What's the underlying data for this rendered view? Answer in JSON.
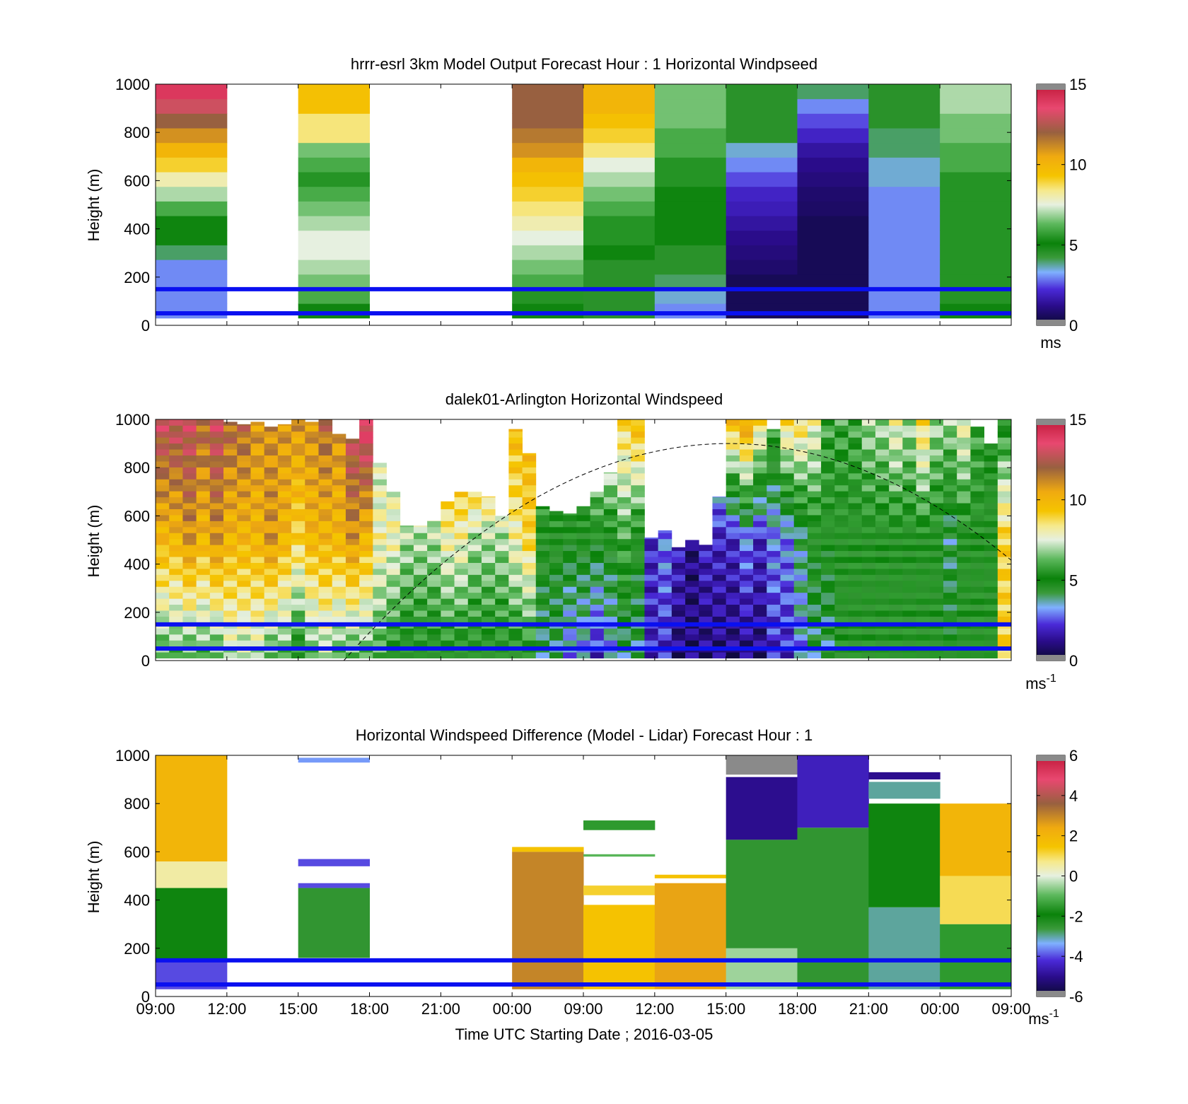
{
  "figure": {
    "xlabel": "Time UTC  Starting Date ; 2016-03-05",
    "x_tick_labels": [
      "09:00",
      "12:00",
      "15:00",
      "18:00",
      "21:00",
      "00:00",
      "09:00",
      "12:00",
      "15:00",
      "18:00",
      "21:00",
      "00:00",
      "09:00"
    ]
  },
  "chart_data": [
    {
      "type": "heatmap",
      "title": "hrrr-esrl 3km Model Output   Forecast Hour : 1 Horizontal Windpseed",
      "ylabel": "Height (m)",
      "ylim": [
        0,
        1000
      ],
      "yticks": [
        "0",
        "200",
        "400",
        "600",
        "800",
        "1000"
      ],
      "colorbar": {
        "ticks": [
          "0",
          "5",
          "10",
          "15"
        ],
        "range": [
          0,
          15
        ],
        "unit": "ms"
      },
      "reference_lines_m": [
        50,
        150
      ],
      "reference_line_color": "#0a10f0",
      "columns": [
        {
          "time": "09:00",
          "profile_ms": [
            3,
            3,
            3,
            3,
            4,
            5,
            5,
            6,
            7,
            8,
            9,
            10,
            11,
            12,
            13,
            14
          ]
        },
        {
          "time": "12:00",
          "profile_ms": []
        },
        {
          "time": "15:00",
          "profile_ms": [
            5,
            6,
            6.5,
            7,
            7.5,
            7.5,
            7,
            6.5,
            6,
            5.5,
            6,
            6.5,
            8.5,
            8.5,
            9.5,
            9.5
          ]
        },
        {
          "time": "18:00",
          "profile_ms": []
        },
        {
          "time": "21:00",
          "profile_ms": []
        },
        {
          "time": "00:00",
          "profile_ms": [
            5,
            5.5,
            6,
            6.5,
            7,
            7.5,
            8,
            8.5,
            9,
            9.5,
            10,
            11,
            11.5,
            12,
            12,
            12
          ]
        },
        {
          "time": "09:00",
          "profile_ms": [
            4.5,
            4.5,
            4.5,
            4.5,
            5,
            5.5,
            5.5,
            6,
            6.5,
            7,
            7.5,
            8.5,
            9,
            9.5,
            10,
            10
          ]
        },
        {
          "time": "12:00",
          "profile_ms": [
            3,
            3.5,
            4,
            4.5,
            4.5,
            5,
            5,
            5,
            5,
            5.5,
            5.5,
            6,
            6,
            6.5,
            6.5,
            6.5
          ]
        },
        {
          "time": "15:00",
          "profile_ms": [
            0.5,
            0.5,
            0.5,
            0.8,
            1,
            1.2,
            1.5,
            1.8,
            2,
            2.5,
            3,
            3.5,
            4.5,
            4.5,
            4.5,
            4.5
          ]
        },
        {
          "time": "18:00",
          "profile_ms": [
            0.5,
            0.5,
            0.5,
            0.5,
            0.5,
            0.5,
            0.5,
            0.7,
            0.8,
            1,
            1.2,
            1.5,
            2,
            2.5,
            3,
            4
          ]
        },
        {
          "time": "21:00",
          "profile_ms": [
            3,
            3,
            3,
            3,
            3,
            3,
            3,
            3,
            3,
            3.5,
            3.5,
            4,
            4,
            4.5,
            4.5,
            4.5
          ]
        },
        {
          "time": "00:00",
          "profile_ms": [
            5,
            5.5,
            5.5,
            5.5,
            5.5,
            5.5,
            5.5,
            5.5,
            5.5,
            5.5,
            6,
            6,
            6.5,
            6.5,
            7,
            7
          ]
        }
      ]
    },
    {
      "type": "heatmap",
      "title": "dalek01-Arlington  Horizontal Windspeed",
      "ylabel": "Height (m)",
      "ylim": [
        0,
        1000
      ],
      "yticks": [
        "0",
        "200",
        "400",
        "600",
        "800",
        "1000"
      ],
      "colorbar": {
        "ticks": [
          "0",
          "5",
          "10",
          "15"
        ],
        "range": [
          0,
          15
        ],
        "unit": "ms",
        "unit_exponent": "-1"
      },
      "reference_lines_m": [
        50,
        150
      ],
      "reference_line_color": "#0a10f0",
      "overlay_curve": {
        "style": "dashed",
        "peak_m": 900,
        "peak_time": "15:00"
      },
      "columns": [
        {
          "time": "09:00",
          "top_m": 1000,
          "low_ms": 6,
          "mid_ms": 10,
          "high_ms": 13
        },
        {
          "time": "09:30",
          "top_m": 1000,
          "low_ms": 6,
          "mid_ms": 10,
          "high_ms": 13
        },
        {
          "time": "10:00",
          "top_m": 1000,
          "low_ms": 6,
          "mid_ms": 11,
          "high_ms": 13
        },
        {
          "time": "10:30",
          "top_m": 1000,
          "low_ms": 6,
          "mid_ms": 10,
          "high_ms": 12
        },
        {
          "time": "11:00",
          "top_m": 1000,
          "low_ms": 6,
          "mid_ms": 11,
          "high_ms": 13
        },
        {
          "time": "11:30",
          "top_m": 990,
          "low_ms": 7,
          "mid_ms": 10,
          "high_ms": 12
        },
        {
          "time": "12:00",
          "top_m": 980,
          "low_ms": 7,
          "mid_ms": 10,
          "high_ms": 12
        },
        {
          "time": "12:30",
          "top_m": 990,
          "low_ms": 7,
          "mid_ms": 10,
          "high_ms": 11
        },
        {
          "time": "13:00",
          "top_m": 970,
          "low_ms": 6,
          "mid_ms": 11,
          "high_ms": 11
        },
        {
          "time": "13:30",
          "top_m": 980,
          "low_ms": 6,
          "mid_ms": 10,
          "high_ms": 11
        },
        {
          "time": "14:00",
          "top_m": 1000,
          "low_ms": 5,
          "mid_ms": 9,
          "high_ms": 11
        },
        {
          "time": "14:30",
          "top_m": 990,
          "low_ms": 6,
          "mid_ms": 10,
          "high_ms": 11
        },
        {
          "time": "15:00",
          "top_m": 1000,
          "low_ms": 7,
          "mid_ms": 10,
          "high_ms": 12
        },
        {
          "time": "15:30",
          "top_m": 940,
          "low_ms": 6,
          "mid_ms": 10,
          "high_ms": 11
        },
        {
          "time": "16:00",
          "top_m": 920,
          "low_ms": 6,
          "mid_ms": 11,
          "high_ms": 13
        },
        {
          "time": "16:30",
          "top_m": 1000,
          "low_ms": 6,
          "mid_ms": 10,
          "high_ms": 14
        },
        {
          "time": "17:00",
          "top_m": 820,
          "low_ms": 6,
          "mid_ms": 8,
          "high_ms": 7
        },
        {
          "time": "17:30",
          "top_m": 700,
          "low_ms": 5,
          "mid_ms": 8,
          "high_ms": 7
        },
        {
          "time": "18:00",
          "top_m": 560,
          "low_ms": 5,
          "mid_ms": 7,
          "high_ms": 9
        },
        {
          "time": "18:30",
          "top_m": 560,
          "low_ms": 5,
          "mid_ms": 7,
          "high_ms": 9
        },
        {
          "time": "19:00",
          "top_m": 580,
          "low_ms": 5,
          "mid_ms": 7,
          "high_ms": 10
        },
        {
          "time": "19:30",
          "top_m": 660,
          "low_ms": 5,
          "mid_ms": 8,
          "high_ms": 11
        },
        {
          "time": "20:00",
          "top_m": 700,
          "low_ms": 5,
          "mid_ms": 8,
          "high_ms": 11
        },
        {
          "time": "20:30",
          "top_m": 700,
          "low_ms": 5,
          "mid_ms": 7,
          "high_ms": 12
        },
        {
          "time": "21:00",
          "top_m": 680,
          "low_ms": 5,
          "mid_ms": 7,
          "high_ms": 12
        },
        {
          "time": "21:30",
          "top_m": 600,
          "low_ms": 5,
          "mid_ms": 7,
          "high_ms": 10
        },
        {
          "time": "22:00",
          "top_m": 960,
          "low_ms": 5,
          "mid_ms": 8,
          "high_ms": 10
        },
        {
          "time": "22:30",
          "top_m": 860,
          "low_ms": 5,
          "mid_ms": 9,
          "high_ms": 10
        },
        {
          "time": "23:00",
          "top_m": 640,
          "low_ms": 4,
          "mid_ms": 5,
          "high_ms": 7
        },
        {
          "time": "23:30",
          "top_m": 620,
          "low_ms": 4,
          "mid_ms": 5,
          "high_ms": 7
        },
        {
          "time": "00:00",
          "top_m": 610,
          "low_ms": 3,
          "mid_ms": 5,
          "high_ms": 6
        },
        {
          "time": "00:30",
          "top_m": 640,
          "low_ms": 3,
          "mid_ms": 5,
          "high_ms": 6
        },
        {
          "time": "01:00",
          "top_m": 700,
          "low_ms": 2,
          "mid_ms": 5,
          "high_ms": 9
        },
        {
          "time": "01:30",
          "top_m": 780,
          "low_ms": 3,
          "mid_ms": 5,
          "high_ms": 9
        },
        {
          "time": "02:00",
          "top_m": 1000,
          "low_ms": 4,
          "mid_ms": 6,
          "high_ms": 9
        },
        {
          "time": "02:30",
          "top_m": 1000,
          "low_ms": 4,
          "mid_ms": 5,
          "high_ms": 10
        },
        {
          "time": "03:00",
          "top_m": 510,
          "low_ms": 2,
          "mid_ms": 2,
          "high_ms": 3
        },
        {
          "time": "03:30",
          "top_m": 540,
          "low_ms": 2,
          "mid_ms": 3,
          "high_ms": 4
        },
        {
          "time": "04:00",
          "top_m": 470,
          "low_ms": 1,
          "mid_ms": 2,
          "high_ms": 3
        },
        {
          "time": "04:30",
          "top_m": 500,
          "low_ms": 1,
          "mid_ms": 1,
          "high_ms": 3
        },
        {
          "time": "05:00",
          "top_m": 480,
          "low_ms": 1,
          "mid_ms": 2,
          "high_ms": 4
        },
        {
          "time": "05:30",
          "top_m": 680,
          "low_ms": 1,
          "mid_ms": 2,
          "high_ms": 5
        },
        {
          "time": "06:00",
          "top_m": 1000,
          "low_ms": 1,
          "mid_ms": 2,
          "high_ms": 10
        },
        {
          "time": "06:30",
          "top_m": 1000,
          "low_ms": 1,
          "mid_ms": 3,
          "high_ms": 11
        },
        {
          "time": "07:00",
          "top_m": 1000,
          "low_ms": 1,
          "mid_ms": 2,
          "high_ms": 9
        },
        {
          "time": "07:30",
          "top_m": 960,
          "low_ms": 2,
          "mid_ms": 3,
          "high_ms": 6
        },
        {
          "time": "08:00",
          "top_m": 1000,
          "low_ms": 2,
          "mid_ms": 3,
          "high_ms": 9
        },
        {
          "time": "08:30",
          "top_m": 1000,
          "low_ms": 3,
          "mid_ms": 4,
          "high_ms": 9
        },
        {
          "time": "09:00",
          "top_m": 1000,
          "low_ms": 4,
          "mid_ms": 5,
          "high_ms": 8
        },
        {
          "time": "09:30",
          "top_m": 1000,
          "low_ms": 4,
          "mid_ms": 5,
          "high_ms": 6
        },
        {
          "time": "10:00",
          "top_m": 1000,
          "low_ms": 5,
          "mid_ms": 5,
          "high_ms": 6
        },
        {
          "time": "10:30",
          "top_m": 1000,
          "low_ms": 5,
          "mid_ms": 5,
          "high_ms": 6
        },
        {
          "time": "11:00",
          "top_m": 1000,
          "low_ms": 5,
          "mid_ms": 5,
          "high_ms": 7
        },
        {
          "time": "11:30",
          "top_m": 1000,
          "low_ms": 5,
          "mid_ms": 5,
          "high_ms": 7
        },
        {
          "time": "12:00",
          "top_m": 1000,
          "low_ms": 5,
          "mid_ms": 5,
          "high_ms": 8
        },
        {
          "time": "12:30",
          "top_m": 1000,
          "low_ms": 5,
          "mid_ms": 5,
          "high_ms": 7
        },
        {
          "time": "13:00",
          "top_m": 1000,
          "low_ms": 5,
          "mid_ms": 5,
          "high_ms": 9
        },
        {
          "time": "13:30",
          "top_m": 1000,
          "low_ms": 5,
          "mid_ms": 5,
          "high_ms": 7
        },
        {
          "time": "14:00",
          "top_m": 1000,
          "low_ms": 5,
          "mid_ms": 4,
          "high_ms": 7
        },
        {
          "time": "14:30",
          "top_m": 1000,
          "low_ms": 5,
          "mid_ms": 5,
          "high_ms": 8
        },
        {
          "time": "15:00",
          "top_m": 970,
          "low_ms": 5,
          "mid_ms": 5,
          "high_ms": 6
        },
        {
          "time": "15:30",
          "top_m": 900,
          "low_ms": 5,
          "mid_ms": 5,
          "high_ms": 5
        },
        {
          "time": "16:00",
          "top_m": 1000,
          "low_ms": 9,
          "mid_ms": 9,
          "high_ms": 5
        }
      ]
    },
    {
      "type": "heatmap",
      "title": "Horizontal Windspeed Difference (Model - Lidar) Forecast Hour : 1",
      "ylabel": "Height (m)",
      "ylim": [
        0,
        1000
      ],
      "yticks": [
        "0",
        "200",
        "400",
        "600",
        "800",
        "1000"
      ],
      "colorbar": {
        "ticks": [
          "-6",
          "-4",
          "-2",
          "0",
          "2",
          "4",
          "6"
        ],
        "range": [
          -6,
          6
        ],
        "unit": "ms",
        "unit_exponent": "-1"
      },
      "reference_lines_m": [
        50,
        150
      ],
      "reference_line_color": "#0a10f0",
      "columns": [
        {
          "time": "09:00",
          "segments": [
            {
              "from": 30,
              "to": 150,
              "diff": -4
            },
            {
              "from": 150,
              "to": 450,
              "diff": -2
            },
            {
              "from": 450,
              "to": 560,
              "diff": 0.5
            },
            {
              "from": 560,
              "to": 1000,
              "diff": 2
            }
          ]
        },
        {
          "time": "12:00",
          "segments": []
        },
        {
          "time": "15:00",
          "segments": [
            {
              "from": 160,
              "to": 450,
              "diff": -2.5
            },
            {
              "from": 450,
              "to": 470,
              "diff": -4
            },
            {
              "from": 540,
              "to": 570,
              "diff": -4
            },
            {
              "from": 970,
              "to": 990,
              "diff": -3.5
            }
          ]
        },
        {
          "time": "18:00",
          "segments": []
        },
        {
          "time": "21:00",
          "segments": []
        },
        {
          "time": "00:00",
          "segments": [
            {
              "from": 30,
              "to": 600,
              "diff": 3
            },
            {
              "from": 600,
              "to": 620,
              "diff": 1.5
            }
          ]
        },
        {
          "time": "09:00",
          "segments": [
            {
              "from": 30,
              "to": 380,
              "diff": 1.5
            },
            {
              "from": 420,
              "to": 460,
              "diff": 1.2
            },
            {
              "from": 580,
              "to": 590,
              "diff": -1
            },
            {
              "from": 690,
              "to": 730,
              "diff": -1.5
            }
          ]
        },
        {
          "time": "12:00",
          "segments": [
            {
              "from": 30,
              "to": 470,
              "diff": 2.5
            },
            {
              "from": 490,
              "to": 505,
              "diff": 1.5
            }
          ]
        },
        {
          "time": "15:00",
          "segments": [
            {
              "from": 30,
              "to": 200,
              "diff": -0.5
            },
            {
              "from": 200,
              "to": 650,
              "diff": -2.5
            },
            {
              "from": 650,
              "to": 910,
              "diff": -5
            },
            {
              "from": 920,
              "to": 1000,
              "diff": -7
            }
          ]
        },
        {
          "time": "18:00",
          "segments": [
            {
              "from": 30,
              "to": 700,
              "diff": -2.5
            },
            {
              "from": 700,
              "to": 1000,
              "diff": -4.5
            }
          ]
        },
        {
          "time": "21:00",
          "segments": [
            {
              "from": 30,
              "to": 370,
              "diff": -3
            },
            {
              "from": 370,
              "to": 800,
              "diff": -2
            },
            {
              "from": 820,
              "to": 890,
              "diff": -3
            },
            {
              "from": 900,
              "to": 930,
              "diff": -5
            }
          ]
        },
        {
          "time": "00:00",
          "segments": [
            {
              "from": 30,
              "to": 300,
              "diff": -1.5
            },
            {
              "from": 300,
              "to": 500,
              "diff": 1
            },
            {
              "from": 500,
              "to": 800,
              "diff": 2
            }
          ]
        }
      ]
    }
  ]
}
